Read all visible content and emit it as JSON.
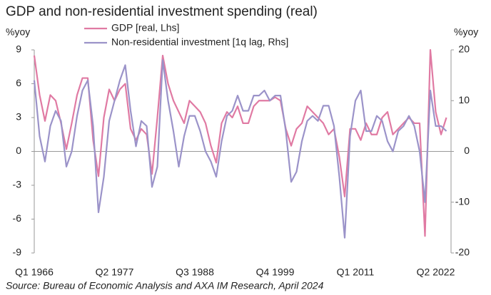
{
  "chart_data": {
    "type": "line",
    "title": "GDP and non-residential investment spending (real)",
    "y_label": "%yoy",
    "y2_label": "%yoy",
    "source": "Source: Bureau of Economic Analysis and AXA IM Research, April 2024",
    "categories": [
      "Q1 1966",
      null,
      null,
      null,
      null,
      null,
      null,
      null,
      null,
      null,
      null,
      null,
      null,
      null,
      null,
      "Q2 1977",
      null,
      null,
      null,
      null,
      null,
      null,
      null,
      null,
      null,
      null,
      null,
      null,
      null,
      null,
      "Q3 1988",
      null,
      null,
      null,
      null,
      null,
      null,
      null,
      null,
      null,
      null,
      null,
      null,
      null,
      null,
      "Q4 1999",
      null,
      null,
      null,
      null,
      null,
      null,
      null,
      null,
      null,
      null,
      null,
      null,
      null,
      null,
      "Q1 2011",
      null,
      null,
      null,
      null,
      null,
      null,
      null,
      null,
      null,
      null,
      null,
      null,
      null,
      null,
      "Q2 2022",
      null,
      null
    ],
    "series": [
      {
        "name": "GDP [real, Lhs]",
        "color": "#e07aa3",
        "values": [
          8.5,
          5,
          2.7,
          5,
          4.5,
          2.5,
          0.2,
          2.5,
          5,
          6.5,
          6.5,
          1,
          -2.2,
          3,
          5.5,
          4.5,
          5.5,
          6,
          2,
          1,
          2,
          1.5,
          -2,
          3,
          8.5,
          6,
          4.5,
          3.5,
          2.5,
          4.5,
          4,
          3.5,
          2.5,
          0.5,
          -1,
          2.5,
          3.5,
          3,
          4,
          2.5,
          2.5,
          4,
          4.5,
          4.5,
          4.5,
          4.8,
          4.5,
          2,
          0.5,
          2,
          2.5,
          4,
          3.5,
          3,
          2.5,
          1.5,
          2,
          -0.5,
          -4,
          2,
          2,
          1,
          2.5,
          1.5,
          1.5,
          3,
          3.5,
          1.5,
          2,
          2.5,
          3,
          2.5,
          2.5,
          -7.5,
          9,
          3.5,
          1.5,
          3
        ]
      },
      {
        "name": "Non-residential investment [1q lag, Rhs]",
        "color": "#9b93c9",
        "axis": "y2",
        "values": [
          14,
          3,
          -2,
          5,
          8,
          6,
          -3,
          0,
          7,
          12,
          14,
          5,
          -12,
          -5,
          6,
          10,
          14,
          17,
          8,
          1,
          6,
          5,
          -7,
          -3,
          18,
          10,
          4,
          -3,
          3,
          7,
          7,
          4,
          0,
          -2,
          -5,
          2,
          7,
          8,
          11,
          8,
          8,
          11,
          11,
          12,
          10,
          11,
          11,
          4,
          -6,
          -4,
          2,
          6,
          7,
          6,
          9,
          9,
          5,
          -5,
          -17,
          3,
          10,
          12,
          4,
          4,
          7,
          6,
          2,
          0,
          4,
          5,
          7,
          5,
          0,
          -10,
          12,
          5,
          5,
          4
        ]
      }
    ],
    "ylim": [
      -9,
      9
    ],
    "yticks": [
      9,
      6,
      3,
      0,
      -3,
      -6,
      -9
    ],
    "y2lim": [
      -20,
      20
    ],
    "y2ticks": [
      20,
      10,
      0,
      -10,
      -20
    ],
    "legend": "top"
  }
}
